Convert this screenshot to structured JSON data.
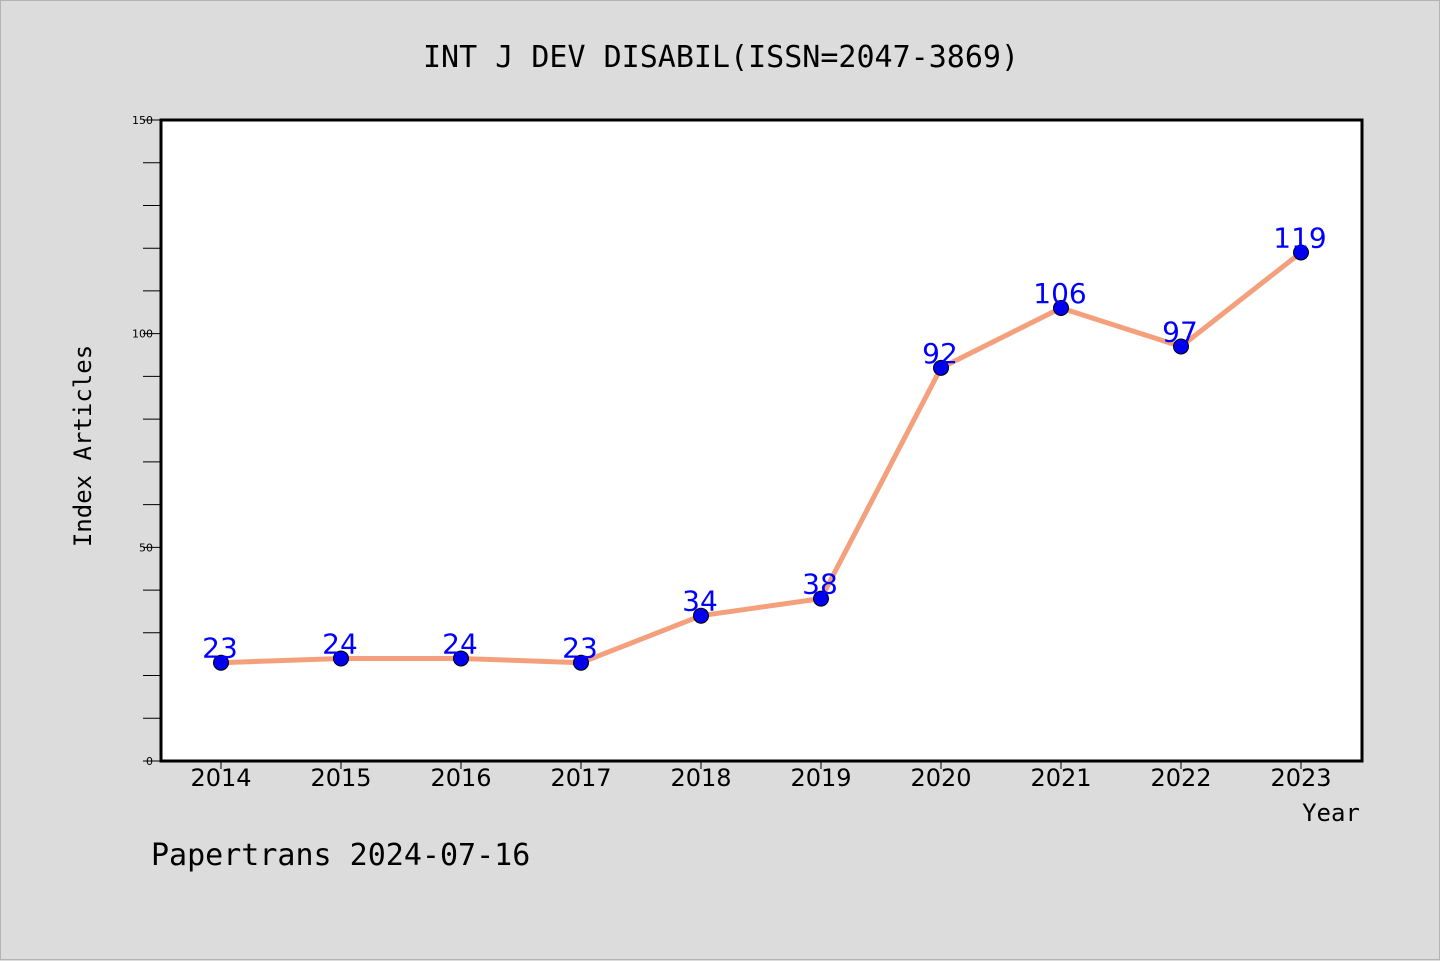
{
  "title": "INT J DEV DISABIL(ISSN=2047-3869)",
  "footer": "Papertrans 2024-07-16",
  "colors": {
    "background": "#dcdcdc",
    "plot_background": "#ffffff",
    "line": "#f4a07c",
    "marker": "#0000ee",
    "data_label": "#0000ff"
  },
  "chart_data": {
    "type": "line",
    "title": "INT J DEV DISABIL(ISSN=2047-3869)",
    "xlabel": "Year",
    "ylabel": "Index Articles",
    "categories": [
      "2014",
      "2015",
      "2016",
      "2017",
      "2018",
      "2019",
      "2020",
      "2021",
      "2022",
      "2023"
    ],
    "series": [
      {
        "values": [
          23,
          24,
          24,
          23,
          34,
          38,
          92,
          106,
          97,
          119
        ]
      }
    ],
    "ylim": [
      0,
      150
    ],
    "yticks": [
      0,
      50,
      100,
      150
    ],
    "yminor_step": 10,
    "grid": false,
    "legend": "none"
  }
}
